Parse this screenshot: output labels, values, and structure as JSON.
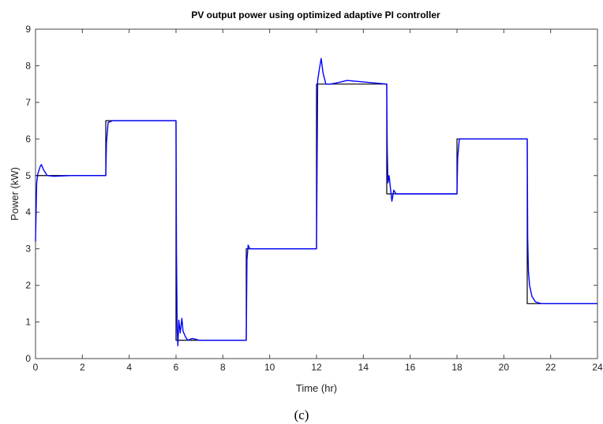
{
  "chart_data": {
    "type": "line",
    "title": "PV output power using optimized adaptive PI controller",
    "xlabel": "Time (hr)",
    "ylabel": "Power (kW)",
    "xlim": [
      0,
      24
    ],
    "ylim": [
      0,
      9
    ],
    "xticks": [
      0,
      2,
      4,
      6,
      8,
      10,
      12,
      14,
      16,
      18,
      20,
      22,
      24
    ],
    "yticks": [
      0,
      1,
      2,
      3,
      4,
      5,
      6,
      7,
      8,
      9
    ],
    "grid": false,
    "legend": "none",
    "caption": "(c)",
    "series": [
      {
        "color": "#000000",
        "style": "step",
        "x": [
          0,
          3,
          3,
          6,
          6,
          9,
          9,
          12,
          12,
          15,
          15,
          18,
          18,
          21,
          21,
          24
        ],
        "y": [
          5,
          5,
          6.5,
          6.5,
          0.5,
          0.5,
          3,
          3,
          7.5,
          7.5,
          4.5,
          4.5,
          6,
          6,
          1.5,
          1.5
        ]
      },
      {
        "color": "#0000ff",
        "style": "line",
        "x": [
          0,
          0.05,
          0.1,
          0.2,
          0.25,
          0.35,
          0.5,
          0.8,
          1.5,
          3.0,
          3.03,
          3.1,
          3.3,
          4.5,
          6.0,
          6.02,
          6.05,
          6.08,
          6.12,
          6.18,
          6.25,
          6.3,
          6.4,
          6.5,
          6.7,
          7.0,
          9.0,
          9.03,
          9.08,
          9.15,
          9.3,
          12.0,
          12.05,
          12.12,
          12.2,
          12.28,
          12.4,
          12.6,
          13.0,
          13.3,
          15.0,
          15.02,
          15.05,
          15.1,
          15.15,
          15.22,
          15.3,
          15.4,
          15.6,
          18.0,
          18.03,
          18.1,
          18.3,
          21.0,
          21.02,
          21.05,
          21.1,
          21.2,
          21.35,
          21.6,
          22.0,
          24.0
        ],
        "y": [
          3.2,
          4.8,
          5.05,
          5.25,
          5.3,
          5.15,
          5.0,
          4.98,
          5.0,
          5.0,
          5.9,
          6.45,
          6.5,
          6.5,
          6.5,
          2.9,
          0.8,
          0.35,
          1.05,
          0.7,
          1.1,
          0.75,
          0.6,
          0.5,
          0.55,
          0.5,
          0.5,
          2.7,
          3.1,
          3.0,
          3.0,
          3.0,
          7.6,
          7.9,
          8.2,
          7.8,
          7.5,
          7.5,
          7.55,
          7.6,
          7.5,
          5.8,
          4.8,
          5.0,
          4.7,
          4.3,
          4.6,
          4.5,
          4.5,
          4.5,
          5.5,
          6.0,
          6.0,
          6.0,
          3.3,
          2.4,
          2.0,
          1.7,
          1.55,
          1.5,
          1.5,
          1.5
        ]
      }
    ]
  }
}
